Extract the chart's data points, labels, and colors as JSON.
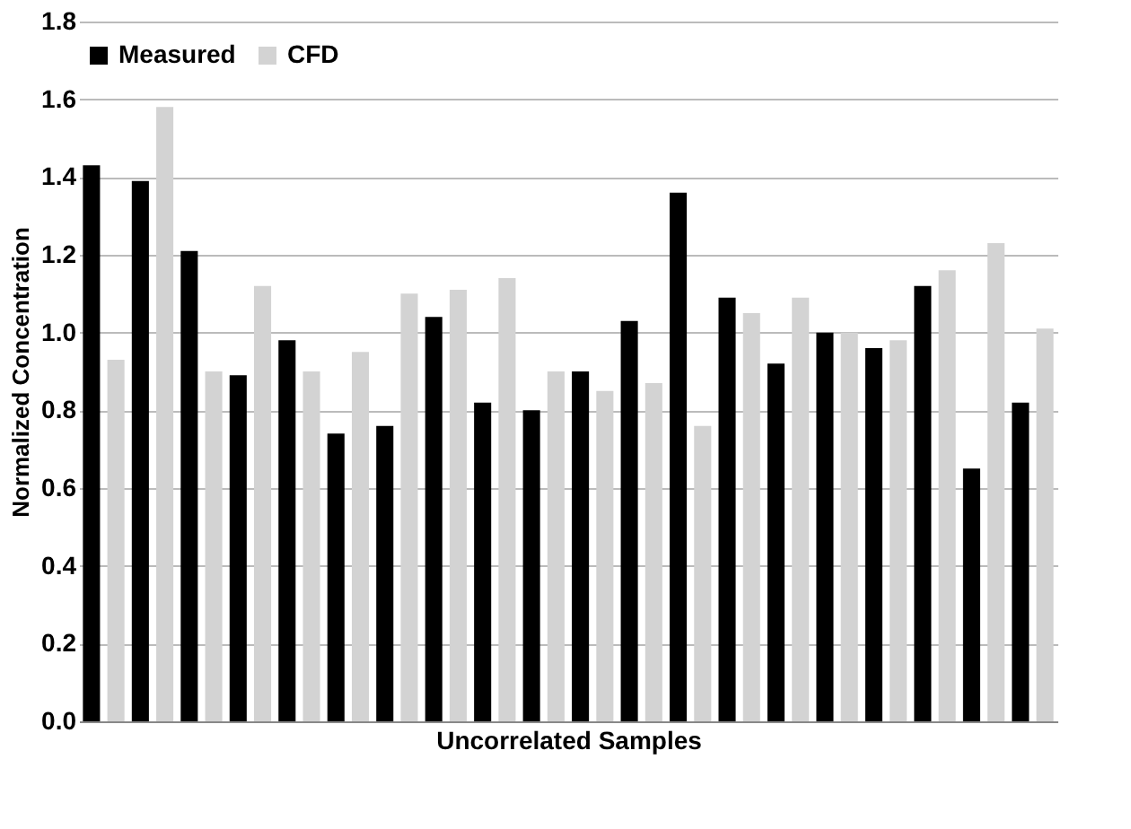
{
  "chart_data": {
    "type": "bar",
    "xlabel": "Uncorrelated Samples",
    "ylabel": "Normalized Concentration",
    "categories": [
      null,
      null,
      null,
      null,
      null,
      null,
      null,
      null,
      null,
      null,
      null,
      null,
      null,
      null,
      null,
      null,
      null,
      null,
      null,
      null
    ],
    "series": [
      {
        "name": "Measured",
        "color": "#000000",
        "values": [
          1.43,
          1.39,
          1.21,
          0.89,
          0.98,
          0.74,
          0.76,
          1.04,
          0.82,
          0.8,
          0.9,
          1.03,
          1.36,
          1.09,
          0.92,
          1.0,
          0.96,
          1.12,
          0.65,
          0.82
        ]
      },
      {
        "name": "CFD",
        "color": "#d3d3d3",
        "values": [
          0.93,
          1.58,
          0.9,
          1.12,
          0.9,
          0.95,
          1.1,
          1.11,
          1.14,
          0.9,
          0.85,
          0.87,
          0.76,
          1.05,
          1.09,
          1.0,
          0.98,
          1.16,
          1.23,
          1.01
        ]
      }
    ],
    "ylim": [
      0,
      1.8
    ],
    "yticks": [
      {
        "value": 0,
        "label": "0.0"
      },
      {
        "value": 0.2,
        "label": "0.2"
      },
      {
        "value": 0.4,
        "label": "0.4"
      },
      {
        "value": 0.6,
        "label": "0.6"
      },
      {
        "value": 0.8,
        "label": "0.8"
      },
      {
        "value": 1,
        "label": "1.0"
      },
      {
        "value": 1.2,
        "label": "1.2"
      },
      {
        "value": 1.4,
        "label": "1.4"
      },
      {
        "value": 1.6,
        "label": "1.6"
      },
      {
        "value": 1.8,
        "label": "1.8"
      }
    ],
    "grid": "y",
    "legend": "top"
  }
}
